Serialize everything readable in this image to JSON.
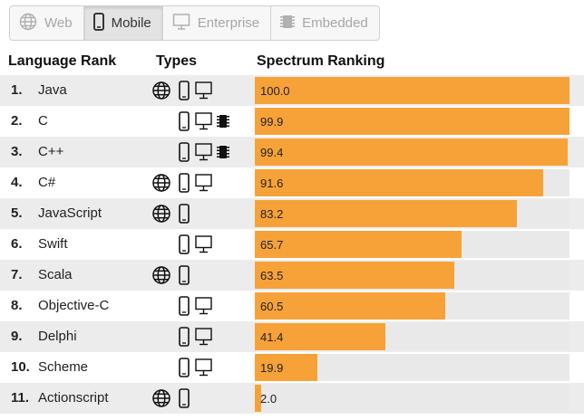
{
  "filters": [
    {
      "label": "Web",
      "icon": "globe-icon",
      "active": false
    },
    {
      "label": "Mobile",
      "icon": "mobile-phone-icon",
      "active": true
    },
    {
      "label": "Enterprise",
      "icon": "desktop-monitor-icon",
      "active": false
    },
    {
      "label": "Embedded",
      "icon": "chip-icon",
      "active": false
    }
  ],
  "headers": {
    "rank": "Language Rank",
    "types": "Types",
    "spectrum": "Spectrum Ranking"
  },
  "colors": {
    "bar": "#f7a238",
    "track": "#e9e9e9"
  },
  "rows": [
    {
      "rank": "1.",
      "name": "Java",
      "types": [
        "web",
        "mobile",
        "enterprise"
      ],
      "score": "100.0",
      "value": 100.0
    },
    {
      "rank": "2.",
      "name": "C",
      "types": [
        "mobile",
        "enterprise",
        "embedded"
      ],
      "score": "99.9",
      "value": 99.9
    },
    {
      "rank": "3.",
      "name": "C++",
      "types": [
        "mobile",
        "enterprise",
        "embedded"
      ],
      "score": "99.4",
      "value": 99.4
    },
    {
      "rank": "4.",
      "name": "C#",
      "types": [
        "web",
        "mobile",
        "enterprise"
      ],
      "score": "91.6",
      "value": 91.6
    },
    {
      "rank": "5.",
      "name": "JavaScript",
      "types": [
        "web",
        "mobile"
      ],
      "score": "83.2",
      "value": 83.2
    },
    {
      "rank": "6.",
      "name": "Swift",
      "types": [
        "mobile",
        "enterprise"
      ],
      "score": "65.7",
      "value": 65.7
    },
    {
      "rank": "7.",
      "name": "Scala",
      "types": [
        "web",
        "mobile"
      ],
      "score": "63.5",
      "value": 63.5
    },
    {
      "rank": "8.",
      "name": "Objective-C",
      "types": [
        "mobile",
        "enterprise"
      ],
      "score": "60.5",
      "value": 60.5
    },
    {
      "rank": "9.",
      "name": "Delphi",
      "types": [
        "mobile",
        "enterprise"
      ],
      "score": "41.4",
      "value": 41.4
    },
    {
      "rank": "10.",
      "name": "Scheme",
      "types": [
        "mobile",
        "enterprise"
      ],
      "score": "19.9",
      "value": 19.9
    },
    {
      "rank": "11.",
      "name": "Actionscript",
      "types": [
        "web",
        "mobile"
      ],
      "score": "2.0",
      "value": 2.0
    }
  ]
}
